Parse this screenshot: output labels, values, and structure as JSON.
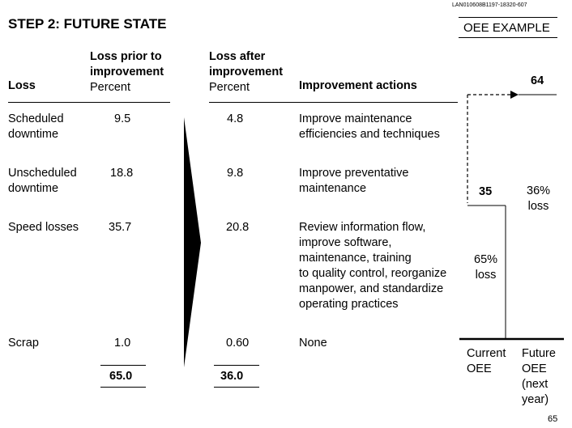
{
  "doc_id": "LAN010608B1197-18320-607",
  "title": "STEP 2:  FUTURE STATE",
  "badge": "OEE EXAMPLE",
  "headers": {
    "loss": "Loss",
    "prior": [
      "Loss prior to",
      "improvement",
      "Percent"
    ],
    "after": [
      "Loss after",
      "improvement",
      "Percent"
    ],
    "actions": "Improvement actions"
  },
  "rows": [
    {
      "loss": [
        "Scheduled",
        "downtime"
      ],
      "prior": "9.5",
      "after": "4.8",
      "action": [
        "Improve maintenance",
        "efficiencies and techniques"
      ]
    },
    {
      "loss": [
        "Unscheduled",
        "downtime"
      ],
      "prior": "18.8",
      "after": "9.8",
      "action": [
        "Improve preventative",
        "maintenance"
      ]
    },
    {
      "loss": [
        "Speed losses"
      ],
      "prior": "35.7",
      "after": "20.8",
      "action": [
        "Review information flow,",
        "improve software,",
        "maintenance, training",
        "to quality control, reorganize",
        "manpower, and standardize",
        "operating practices"
      ]
    },
    {
      "loss": [
        "Scrap"
      ],
      "prior": "1.0",
      "after": "0.60",
      "action": [
        "None"
      ]
    }
  ],
  "totals": {
    "prior": "65.0",
    "after": "36.0"
  },
  "oee_chart": {
    "current_value": "35",
    "future_value": "64",
    "current_loss": [
      "65%",
      "loss"
    ],
    "future_loss": [
      "36%",
      "loss"
    ],
    "current_label": [
      "Current",
      "OEE"
    ],
    "future_label": [
      "Future",
      "OEE",
      "(next",
      "year)"
    ]
  },
  "page_number": "65"
}
